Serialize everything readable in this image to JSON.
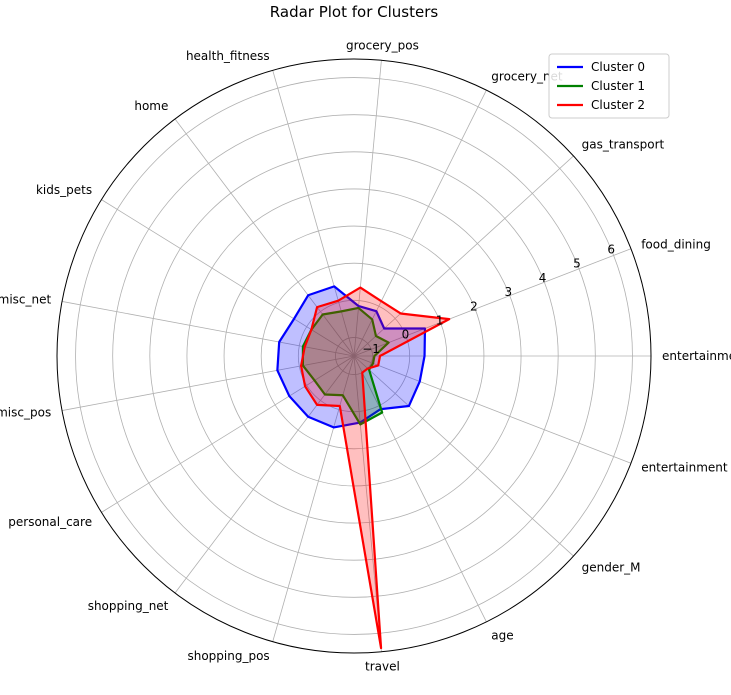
{
  "chart_data": {
    "type": "radar",
    "title": "Radar Plot for Clusters",
    "categories": [
      "entertainment",
      "food_dining",
      "gas_transport",
      "grocery_net",
      "grocery_pos",
      "health_fitness",
      "home",
      "kids_pets",
      "misc_net",
      "misc_pos",
      "personal_care",
      "shopping_net",
      "shopping_pos",
      "travel",
      "age",
      "gender_M",
      "entertainment"
    ],
    "radial_ticks": [
      "−1",
      "0",
      "1",
      "2",
      "3",
      "4",
      "5",
      "6"
    ],
    "rlim": [
      -1.5,
      6.5
    ],
    "grid": true,
    "legend_position": "top-right",
    "series": [
      {
        "name": "Cluster 0",
        "color": "#0000ff",
        "values": [
          0.4,
          0.55,
          -0.4,
          -0.15,
          -0.15,
          0.45,
          0.55,
          0.4,
          0.55,
          0.6,
          0.55,
          0.55,
          0.5,
          0.3,
          0.1,
          0.5,
          0.4
        ]
      },
      {
        "name": "Cluster 1",
        "color": "#008000",
        "values": [
          -0.95,
          -0.5,
          -0.7,
          -0.4,
          -0.2,
          -0.25,
          -0.1,
          -0.15,
          -0.1,
          -0.1,
          -0.25,
          -0.2,
          -0.4,
          0.35,
          0.2,
          -0.95,
          -0.95
        ]
      },
      {
        "name": "Cluster 2",
        "color": "#ff0000",
        "values": [
          -0.8,
          1.25,
          0.2,
          0.15,
          0.35,
          0.05,
          0.15,
          -0.15,
          -0.15,
          -0.05,
          0.05,
          0.15,
          -0.1,
          6.4,
          -1.0,
          -1.0,
          -0.8
        ]
      }
    ]
  }
}
